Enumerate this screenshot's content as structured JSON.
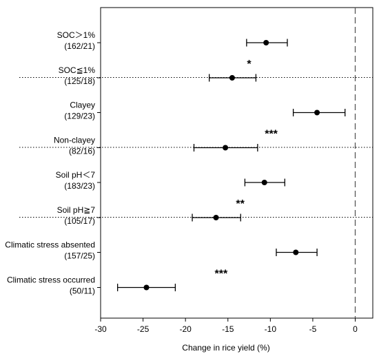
{
  "chart_data": {
    "type": "forest",
    "title": "",
    "xlabel": "Change in rice yield (%)",
    "ylabel": "",
    "xlim": [
      -30,
      2
    ],
    "x_ticks": [
      "-30",
      "-25",
      "-20",
      "-15",
      "-10",
      "-5",
      "0"
    ],
    "reference_line": 0,
    "groups": [
      {
        "significance": "*",
        "items": [
          {
            "label": "SOC＞1%",
            "n": "(162/21)",
            "mean": -10.5,
            "ci": [
              -12.8,
              -8.0
            ]
          },
          {
            "label": "SOC≦1%",
            "n": "(125/18)",
            "mean": -14.5,
            "ci": [
              -17.2,
              -11.7
            ]
          }
        ]
      },
      {
        "significance": "***",
        "items": [
          {
            "label": "Clayey",
            "n": "(129/23)",
            "mean": -4.5,
            "ci": [
              -7.3,
              -1.2
            ]
          },
          {
            "label": "Non-clayey",
            "n": "(82/16)",
            "mean": -15.3,
            "ci": [
              -19.0,
              -11.5
            ]
          }
        ]
      },
      {
        "significance": "**",
        "items": [
          {
            "label": "Soil pH＜7",
            "n": "(183/23)",
            "mean": -10.7,
            "ci": [
              -13.0,
              -8.3
            ]
          },
          {
            "label": "Soil pH≧7",
            "n": "(105/17)",
            "mean": -16.4,
            "ci": [
              -19.2,
              -13.5
            ]
          }
        ]
      },
      {
        "significance": "***",
        "items": [
          {
            "label": "Climatic stress absented",
            "n": "(157/25)",
            "mean": -7.0,
            "ci": [
              -9.3,
              -4.5
            ]
          },
          {
            "label": "Climatic stress occurred",
            "n": "(50/11)",
            "mean": -24.6,
            "ci": [
              -28.0,
              -21.2
            ]
          }
        ]
      }
    ]
  }
}
